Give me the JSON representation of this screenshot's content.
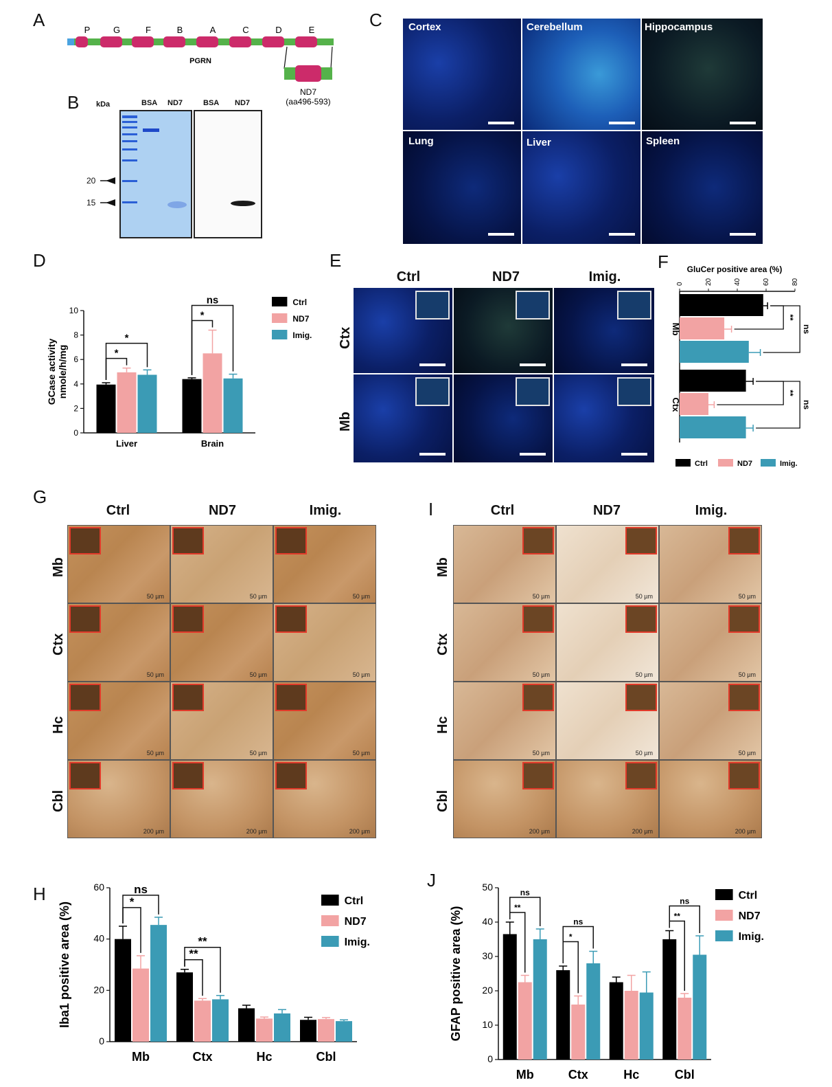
{
  "panels": {
    "A": "A",
    "B": "B",
    "C": "C",
    "D": "D",
    "E": "E",
    "F": "F",
    "G": "G",
    "H": "H",
    "I": "I",
    "J": "J"
  },
  "panelA": {
    "domains": [
      "P",
      "G",
      "F",
      "B",
      "A",
      "C",
      "D",
      "E"
    ],
    "protein": "PGRN",
    "fragment": "ND7",
    "fragment_range": "(aa496-593)",
    "colors": {
      "domain": "#cc2b6a",
      "linker": "#55b24a",
      "signal": "#4aa3e0"
    }
  },
  "panelB": {
    "unit": "kDa",
    "lanes": [
      "BSA",
      "ND7",
      "BSA",
      "ND7"
    ],
    "markers": [
      "20",
      "15"
    ]
  },
  "panelC": {
    "tissues": [
      "Cortex",
      "Cerebellum",
      "Hippocampus",
      "Lung",
      "Liver",
      "Spleen"
    ]
  },
  "panelE": {
    "columns": [
      "Ctrl",
      "ND7",
      "Imig."
    ],
    "rows": [
      "Ctx",
      "Mb"
    ]
  },
  "panelG": {
    "columns": [
      "Ctrl",
      "ND7",
      "Imig."
    ],
    "rows": [
      "Mb",
      "Ctx",
      "Hc",
      "Cbl"
    ],
    "scale_small": "50 µm",
    "scale_large": "200 µm"
  },
  "panelI": {
    "columns": [
      "Ctrl",
      "ND7",
      "Imig."
    ],
    "rows": [
      "Mb",
      "Ctx",
      "Hc",
      "Cbl"
    ],
    "scale_small": "50 µm",
    "scale_large": "200 µm"
  },
  "colors": {
    "ctrl": "#000000",
    "nd7": "#f2a3a3",
    "imig": "#3b9bb5"
  },
  "chart_data": [
    {
      "id": "D",
      "type": "bar",
      "ylabel": "GCase activity\nnmole/h/mg",
      "ylim": [
        0,
        10
      ],
      "yticks": [
        0,
        2,
        4,
        6,
        8,
        10
      ],
      "categories": [
        "Liver",
        "Brain"
      ],
      "series": [
        {
          "name": "Ctrl",
          "values": [
            3.95,
            4.4
          ],
          "errors": [
            0.15,
            0.1
          ]
        },
        {
          "name": "ND7",
          "values": [
            4.95,
            6.5
          ],
          "errors": [
            0.35,
            1.9
          ]
        },
        {
          "name": "Imig.",
          "values": [
            4.75,
            4.45
          ],
          "errors": [
            0.4,
            0.35
          ]
        }
      ],
      "significance": [
        {
          "cat": 0,
          "from": 0,
          "to": 1,
          "label": "*"
        },
        {
          "cat": 0,
          "from": 0,
          "to": 2,
          "label": "*"
        },
        {
          "cat": 1,
          "from": 0,
          "to": 1,
          "label": "*"
        },
        {
          "cat": 1,
          "from": 0,
          "to": 2,
          "label": "ns"
        }
      ]
    },
    {
      "id": "F",
      "type": "bar",
      "orientation": "horizontal",
      "title": "GluCer positive area (%)",
      "xlim": [
        0,
        80
      ],
      "xticks": [
        0,
        20,
        40,
        60,
        80
      ],
      "categories": [
        "Mb",
        "Ctx"
      ],
      "series": [
        {
          "name": "Ctrl",
          "values": [
            58,
            46
          ],
          "errors": [
            3,
            5
          ]
        },
        {
          "name": "ND7",
          "values": [
            31,
            20
          ],
          "errors": [
            5,
            4
          ]
        },
        {
          "name": "Imig.",
          "values": [
            48,
            46
          ],
          "errors": [
            8,
            5
          ]
        }
      ],
      "significance": [
        {
          "cat": 0,
          "from": 0,
          "to": 1,
          "label": "**"
        },
        {
          "cat": 0,
          "from": 0,
          "to": 2,
          "label": "ns"
        },
        {
          "cat": 1,
          "from": 0,
          "to": 1,
          "label": "**"
        },
        {
          "cat": 1,
          "from": 0,
          "to": 2,
          "label": "ns"
        }
      ]
    },
    {
      "id": "H",
      "type": "bar",
      "ylabel": "Iba1 positive area (%)",
      "ylim": [
        0,
        60
      ],
      "yticks": [
        0,
        20,
        40,
        60
      ],
      "categories": [
        "Mb",
        "Ctx",
        "Hc",
        "Cbl"
      ],
      "series": [
        {
          "name": "Ctrl",
          "values": [
            40,
            27,
            13,
            8.5
          ],
          "errors": [
            5,
            1.2,
            1.2,
            1.0
          ]
        },
        {
          "name": "ND7",
          "values": [
            28.5,
            16,
            9,
            8.8
          ],
          "errors": [
            5,
            0.8,
            0.6,
            0.6
          ]
        },
        {
          "name": "Imig.",
          "values": [
            45.5,
            16.5,
            11,
            8
          ],
          "errors": [
            3,
            1.5,
            1.5,
            0.5
          ]
        }
      ],
      "significance": [
        {
          "cat": 0,
          "from": 0,
          "to": 1,
          "label": "*"
        },
        {
          "cat": 0,
          "from": 0,
          "to": 2,
          "label": "ns"
        },
        {
          "cat": 1,
          "from": 0,
          "to": 1,
          "label": "**"
        },
        {
          "cat": 1,
          "from": 0,
          "to": 2,
          "label": "**"
        }
      ]
    },
    {
      "id": "J",
      "type": "bar",
      "ylabel": "GFAP positive area (%)",
      "ylim": [
        0,
        50
      ],
      "yticks": [
        0,
        10,
        20,
        30,
        40,
        50
      ],
      "categories": [
        "Mb",
        "Ctx",
        "Hc",
        "Cbl"
      ],
      "series": [
        {
          "name": "Ctrl",
          "values": [
            36.5,
            26,
            22.5,
            35
          ],
          "errors": [
            3.5,
            1.2,
            1.5,
            2.5
          ]
        },
        {
          "name": "ND7",
          "values": [
            22.5,
            16,
            20,
            18
          ],
          "errors": [
            2.0,
            2.5,
            4.5,
            1.2
          ]
        },
        {
          "name": "Imig.",
          "values": [
            35,
            28,
            19.5,
            30.5
          ],
          "errors": [
            3,
            3.5,
            6,
            5.5
          ]
        }
      ],
      "significance": [
        {
          "cat": 0,
          "from": 0,
          "to": 1,
          "label": "**"
        },
        {
          "cat": 0,
          "from": 0,
          "to": 2,
          "label": "ns"
        },
        {
          "cat": 1,
          "from": 0,
          "to": 1,
          "label": "*"
        },
        {
          "cat": 1,
          "from": 0,
          "to": 2,
          "label": "ns"
        },
        {
          "cat": 3,
          "from": 0,
          "to": 1,
          "label": "**"
        },
        {
          "cat": 3,
          "from": 0,
          "to": 2,
          "label": "ns"
        }
      ]
    }
  ]
}
